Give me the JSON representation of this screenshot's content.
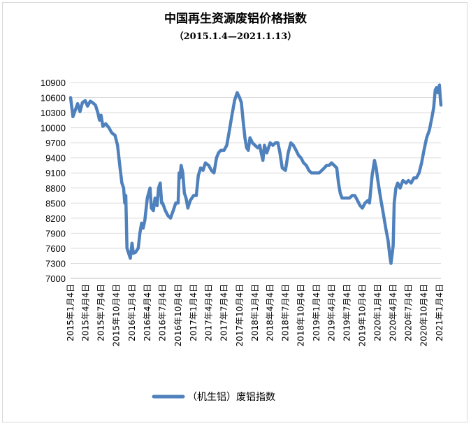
{
  "chart_data": {
    "type": "line",
    "title": "中国再生资源废铝价格指数",
    "subtitle": "（2015.1.4—2021.1.13）",
    "xlabel": "",
    "ylabel": "",
    "ylim": [
      7000,
      10900
    ],
    "yticks": [
      "10900",
      "10600",
      "10300",
      "10000",
      "9700",
      "9400",
      "9100",
      "8800",
      "8500",
      "8200",
      "7900",
      "7600",
      "7300",
      "7000"
    ],
    "x_range": [
      "2015-01-04",
      "2021-01-13"
    ],
    "xticks": [
      {
        "label": "2015年1月4日",
        "date": "2015-01-04"
      },
      {
        "label": "2015年4月4日",
        "date": "2015-04-04"
      },
      {
        "label": "2015年7月4日",
        "date": "2015-07-04"
      },
      {
        "label": "2015年10月4日",
        "date": "2015-10-04"
      },
      {
        "label": "2016年1月4日",
        "date": "2016-01-04"
      },
      {
        "label": "2016年4月4日",
        "date": "2016-04-04"
      },
      {
        "label": "2016年7月4日",
        "date": "2016-07-04"
      },
      {
        "label": "2016年10月4日",
        "date": "2016-10-04"
      },
      {
        "label": "2017年1月4日",
        "date": "2017-01-04"
      },
      {
        "label": "2017年4月4日",
        "date": "2017-04-04"
      },
      {
        "label": "2017年7月4日",
        "date": "2017-07-04"
      },
      {
        "label": "2017年10月4日",
        "date": "2017-10-04"
      },
      {
        "label": "2018年1月4日",
        "date": "2018-01-04"
      },
      {
        "label": "2018年4月4日",
        "date": "2018-04-04"
      },
      {
        "label": "2018年7月4日",
        "date": "2018-07-04"
      },
      {
        "label": "2018年10月4日",
        "date": "2018-10-04"
      },
      {
        "label": "2019年1月4日",
        "date": "2019-01-04"
      },
      {
        "label": "2019年4月4日",
        "date": "2019-04-04"
      },
      {
        "label": "2019年7月4日",
        "date": "2019-07-04"
      },
      {
        "label": "2019年10月4日",
        "date": "2019-10-04"
      },
      {
        "label": "2020年1月4日",
        "date": "2020-01-04"
      },
      {
        "label": "2020年4月4日",
        "date": "2020-04-04"
      },
      {
        "label": "2020年7月4日",
        "date": "2020-07-04"
      },
      {
        "label": "2020年10月4日",
        "date": "2020-10-04"
      },
      {
        "label": "2021年1月4日",
        "date": "2021-01-04"
      }
    ],
    "grid": true,
    "legend_position": "bottom",
    "series": [
      {
        "name": "（机生铝）废铝指数",
        "color": "#4f81bd",
        "points": [
          [
            "2015-01-04",
            10600
          ],
          [
            "2015-01-18",
            10220
          ],
          [
            "2015-02-01",
            10350
          ],
          [
            "2015-02-15",
            10480
          ],
          [
            "2015-03-01",
            10320
          ],
          [
            "2015-03-15",
            10500
          ],
          [
            "2015-04-01",
            10540
          ],
          [
            "2015-04-15",
            10430
          ],
          [
            "2015-05-01",
            10530
          ],
          [
            "2015-05-15",
            10500
          ],
          [
            "2015-06-01",
            10450
          ],
          [
            "2015-06-15",
            10300
          ],
          [
            "2015-06-25",
            10150
          ],
          [
            "2015-07-04",
            10250
          ],
          [
            "2015-07-15",
            10030
          ],
          [
            "2015-08-01",
            10080
          ],
          [
            "2015-08-20",
            10000
          ],
          [
            "2015-09-05",
            9900
          ],
          [
            "2015-09-25",
            9850
          ],
          [
            "2015-10-10",
            9650
          ],
          [
            "2015-10-25",
            9200
          ],
          [
            "2015-11-05",
            8900
          ],
          [
            "2015-11-15",
            8800
          ],
          [
            "2015-11-22",
            8500
          ],
          [
            "2015-11-28",
            8650
          ],
          [
            "2015-12-05",
            7600
          ],
          [
            "2015-12-15",
            7500
          ],
          [
            "2015-12-25",
            7400
          ],
          [
            "2016-01-04",
            7700
          ],
          [
            "2016-01-12",
            7500
          ],
          [
            "2016-01-25",
            7520
          ],
          [
            "2016-02-10",
            7600
          ],
          [
            "2016-02-20",
            7900
          ],
          [
            "2016-03-01",
            8100
          ],
          [
            "2016-03-10",
            8000
          ],
          [
            "2016-03-20",
            8150
          ],
          [
            "2016-04-04",
            8600
          ],
          [
            "2016-04-12",
            8700
          ],
          [
            "2016-04-20",
            8800
          ],
          [
            "2016-04-28",
            8400
          ],
          [
            "2016-05-10",
            8350
          ],
          [
            "2016-05-20",
            8600
          ],
          [
            "2016-06-01",
            8450
          ],
          [
            "2016-06-10",
            8800
          ],
          [
            "2016-06-20",
            8900
          ],
          [
            "2016-06-28",
            8500
          ],
          [
            "2016-07-04",
            8500
          ],
          [
            "2016-07-20",
            8350
          ],
          [
            "2016-08-05",
            8250
          ],
          [
            "2016-08-20",
            8200
          ],
          [
            "2016-09-05",
            8350
          ],
          [
            "2016-09-20",
            8500
          ],
          [
            "2016-10-04",
            8500
          ],
          [
            "2016-10-10",
            9100
          ],
          [
            "2016-10-15",
            9000
          ],
          [
            "2016-10-22",
            9250
          ],
          [
            "2016-11-01",
            9100
          ],
          [
            "2016-11-10",
            8700
          ],
          [
            "2016-11-20",
            8600
          ],
          [
            "2016-12-01",
            8400
          ],
          [
            "2016-12-15",
            8550
          ],
          [
            "2017-01-04",
            8650
          ],
          [
            "2017-01-20",
            8650
          ],
          [
            "2017-02-01",
            9050
          ],
          [
            "2017-02-15",
            9200
          ],
          [
            "2017-03-01",
            9150
          ],
          [
            "2017-03-15",
            9300
          ],
          [
            "2017-04-04",
            9250
          ],
          [
            "2017-04-20",
            9150
          ],
          [
            "2017-05-05",
            9100
          ],
          [
            "2017-05-20",
            9400
          ],
          [
            "2017-06-01",
            9500
          ],
          [
            "2017-06-15",
            9550
          ],
          [
            "2017-07-04",
            9550
          ],
          [
            "2017-07-20",
            9650
          ],
          [
            "2017-08-05",
            9950
          ],
          [
            "2017-08-20",
            10250
          ],
          [
            "2017-09-05",
            10550
          ],
          [
            "2017-09-20",
            10700
          ],
          [
            "2017-10-04",
            10600
          ],
          [
            "2017-10-15",
            10500
          ],
          [
            "2017-10-25",
            10150
          ],
          [
            "2017-11-05",
            9800
          ],
          [
            "2017-11-15",
            9600
          ],
          [
            "2017-11-25",
            9550
          ],
          [
            "2017-12-05",
            9800
          ],
          [
            "2017-12-20",
            9700
          ],
          [
            "2018-01-04",
            9650
          ],
          [
            "2018-01-20",
            9600
          ],
          [
            "2018-02-01",
            9650
          ],
          [
            "2018-02-10",
            9500
          ],
          [
            "2018-02-20",
            9350
          ],
          [
            "2018-03-01",
            9650
          ],
          [
            "2018-03-15",
            9500
          ],
          [
            "2018-04-04",
            9700
          ],
          [
            "2018-04-20",
            9650
          ],
          [
            "2018-05-05",
            9700
          ],
          [
            "2018-05-20",
            9700
          ],
          [
            "2018-06-01",
            9500
          ],
          [
            "2018-06-15",
            9200
          ],
          [
            "2018-07-04",
            9150
          ],
          [
            "2018-07-20",
            9500
          ],
          [
            "2018-08-05",
            9700
          ],
          [
            "2018-08-20",
            9650
          ],
          [
            "2018-09-05",
            9550
          ],
          [
            "2018-09-20",
            9450
          ],
          [
            "2018-10-04",
            9400
          ],
          [
            "2018-10-20",
            9300
          ],
          [
            "2018-11-05",
            9250
          ],
          [
            "2018-11-20",
            9150
          ],
          [
            "2018-12-05",
            9100
          ],
          [
            "2018-12-20",
            9100
          ],
          [
            "2019-01-04",
            9100
          ],
          [
            "2019-01-20",
            9100
          ],
          [
            "2019-02-05",
            9150
          ],
          [
            "2019-02-20",
            9200
          ],
          [
            "2019-03-05",
            9250
          ],
          [
            "2019-03-20",
            9250
          ],
          [
            "2019-04-04",
            9300
          ],
          [
            "2019-04-20",
            9250
          ],
          [
            "2019-05-05",
            9200
          ],
          [
            "2019-05-15",
            8900
          ],
          [
            "2019-05-25",
            8700
          ],
          [
            "2019-06-05",
            8600
          ],
          [
            "2019-06-20",
            8600
          ],
          [
            "2019-07-04",
            8600
          ],
          [
            "2019-07-20",
            8600
          ],
          [
            "2019-08-05",
            8650
          ],
          [
            "2019-08-20",
            8650
          ],
          [
            "2019-09-05",
            8550
          ],
          [
            "2019-09-20",
            8450
          ],
          [
            "2019-10-04",
            8400
          ],
          [
            "2019-10-20",
            8500
          ],
          [
            "2019-11-05",
            8550
          ],
          [
            "2019-11-15",
            8500
          ],
          [
            "2019-12-01",
            9050
          ],
          [
            "2019-12-15",
            9350
          ],
          [
            "2019-12-25",
            9200
          ],
          [
            "2020-01-04",
            8950
          ],
          [
            "2020-01-20",
            8600
          ],
          [
            "2020-02-05",
            8300
          ],
          [
            "2020-02-20",
            8000
          ],
          [
            "2020-03-05",
            7750
          ],
          [
            "2020-03-15",
            7450
          ],
          [
            "2020-03-22",
            7300
          ],
          [
            "2020-04-04",
            7650
          ],
          [
            "2020-04-10",
            8500
          ],
          [
            "2020-04-20",
            8800
          ],
          [
            "2020-05-01",
            8900
          ],
          [
            "2020-05-15",
            8800
          ],
          [
            "2020-06-01",
            8950
          ],
          [
            "2020-06-20",
            8900
          ],
          [
            "2020-07-04",
            8950
          ],
          [
            "2020-07-20",
            8900
          ],
          [
            "2020-08-05",
            9000
          ],
          [
            "2020-08-20",
            9000
          ],
          [
            "2020-09-05",
            9100
          ],
          [
            "2020-09-20",
            9300
          ],
          [
            "2020-10-04",
            9550
          ],
          [
            "2020-10-20",
            9800
          ],
          [
            "2020-11-05",
            9950
          ],
          [
            "2020-11-20",
            10200
          ],
          [
            "2020-12-01",
            10400
          ],
          [
            "2020-12-10",
            10750
          ],
          [
            "2020-12-18",
            10800
          ],
          [
            "2020-12-25",
            10700
          ],
          [
            "2021-01-04",
            10850
          ],
          [
            "2021-01-09",
            10600
          ],
          [
            "2021-01-13",
            10450
          ]
        ]
      }
    ]
  }
}
